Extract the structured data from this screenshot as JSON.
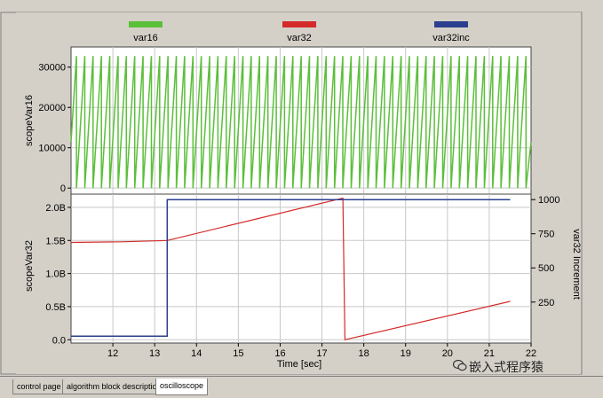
{
  "colors": {
    "var16": "#5bbf3a",
    "var32": "#d42a2a",
    "var32inc": "#2b3f8f",
    "panel": "#d4d0c8",
    "plot_bg": "#ffffff"
  },
  "tabs": [
    {
      "label": "control page",
      "active": false
    },
    {
      "label": "algorithm block description",
      "active": false
    },
    {
      "label": "oscilloscope",
      "active": true
    }
  ],
  "watermark": "嵌入式程序猿",
  "chart_data": [
    {
      "type": "line",
      "legend": [
        "var16",
        "var32",
        "var32inc"
      ],
      "ylabel": "scopeVar16",
      "yticks": [
        "0",
        "10000",
        "20000",
        "30000"
      ],
      "ylim": [
        -1500,
        35000
      ],
      "xlim": [
        11,
        21.5
      ],
      "grid": true,
      "series": [
        {
          "name": "var16",
          "waveform": "sawtooth",
          "min": 0,
          "max": 32767,
          "period_sec": 0.19,
          "x_start": 11,
          "x_end": 21.5
        }
      ]
    },
    {
      "type": "line",
      "xlabel": "Time [sec]",
      "xticks": [
        "12",
        "13",
        "14",
        "15",
        "16",
        "17",
        "18",
        "19",
        "20",
        "21",
        "22"
      ],
      "xlim": [
        11,
        22
      ],
      "ylabel_left": "scopeVar32",
      "yticks_left": [
        "0.0",
        "0.5B",
        "1.0B",
        "1.5B",
        "2.0B"
      ],
      "ylim_left": [
        -0.05,
        2.2
      ],
      "ylabel_right": "var32 Increment",
      "yticks_right": [
        "250",
        "500",
        "750",
        "1000"
      ],
      "ylim_right": [
        -50,
        1040
      ],
      "grid": true,
      "series": [
        {
          "name": "var32",
          "axis": "left",
          "x": [
            11,
            12.2,
            13.3,
            17.5,
            17.5,
            17.55,
            21.5
          ],
          "y": [
            1.47,
            1.48,
            1.5,
            2.14,
            2.14,
            0.0,
            0.58
          ]
        },
        {
          "name": "var32inc",
          "axis": "right",
          "x": [
            11,
            13.3,
            13.3,
            21.5
          ],
          "y": [
            0,
            0,
            1000,
            1000
          ]
        }
      ]
    }
  ]
}
